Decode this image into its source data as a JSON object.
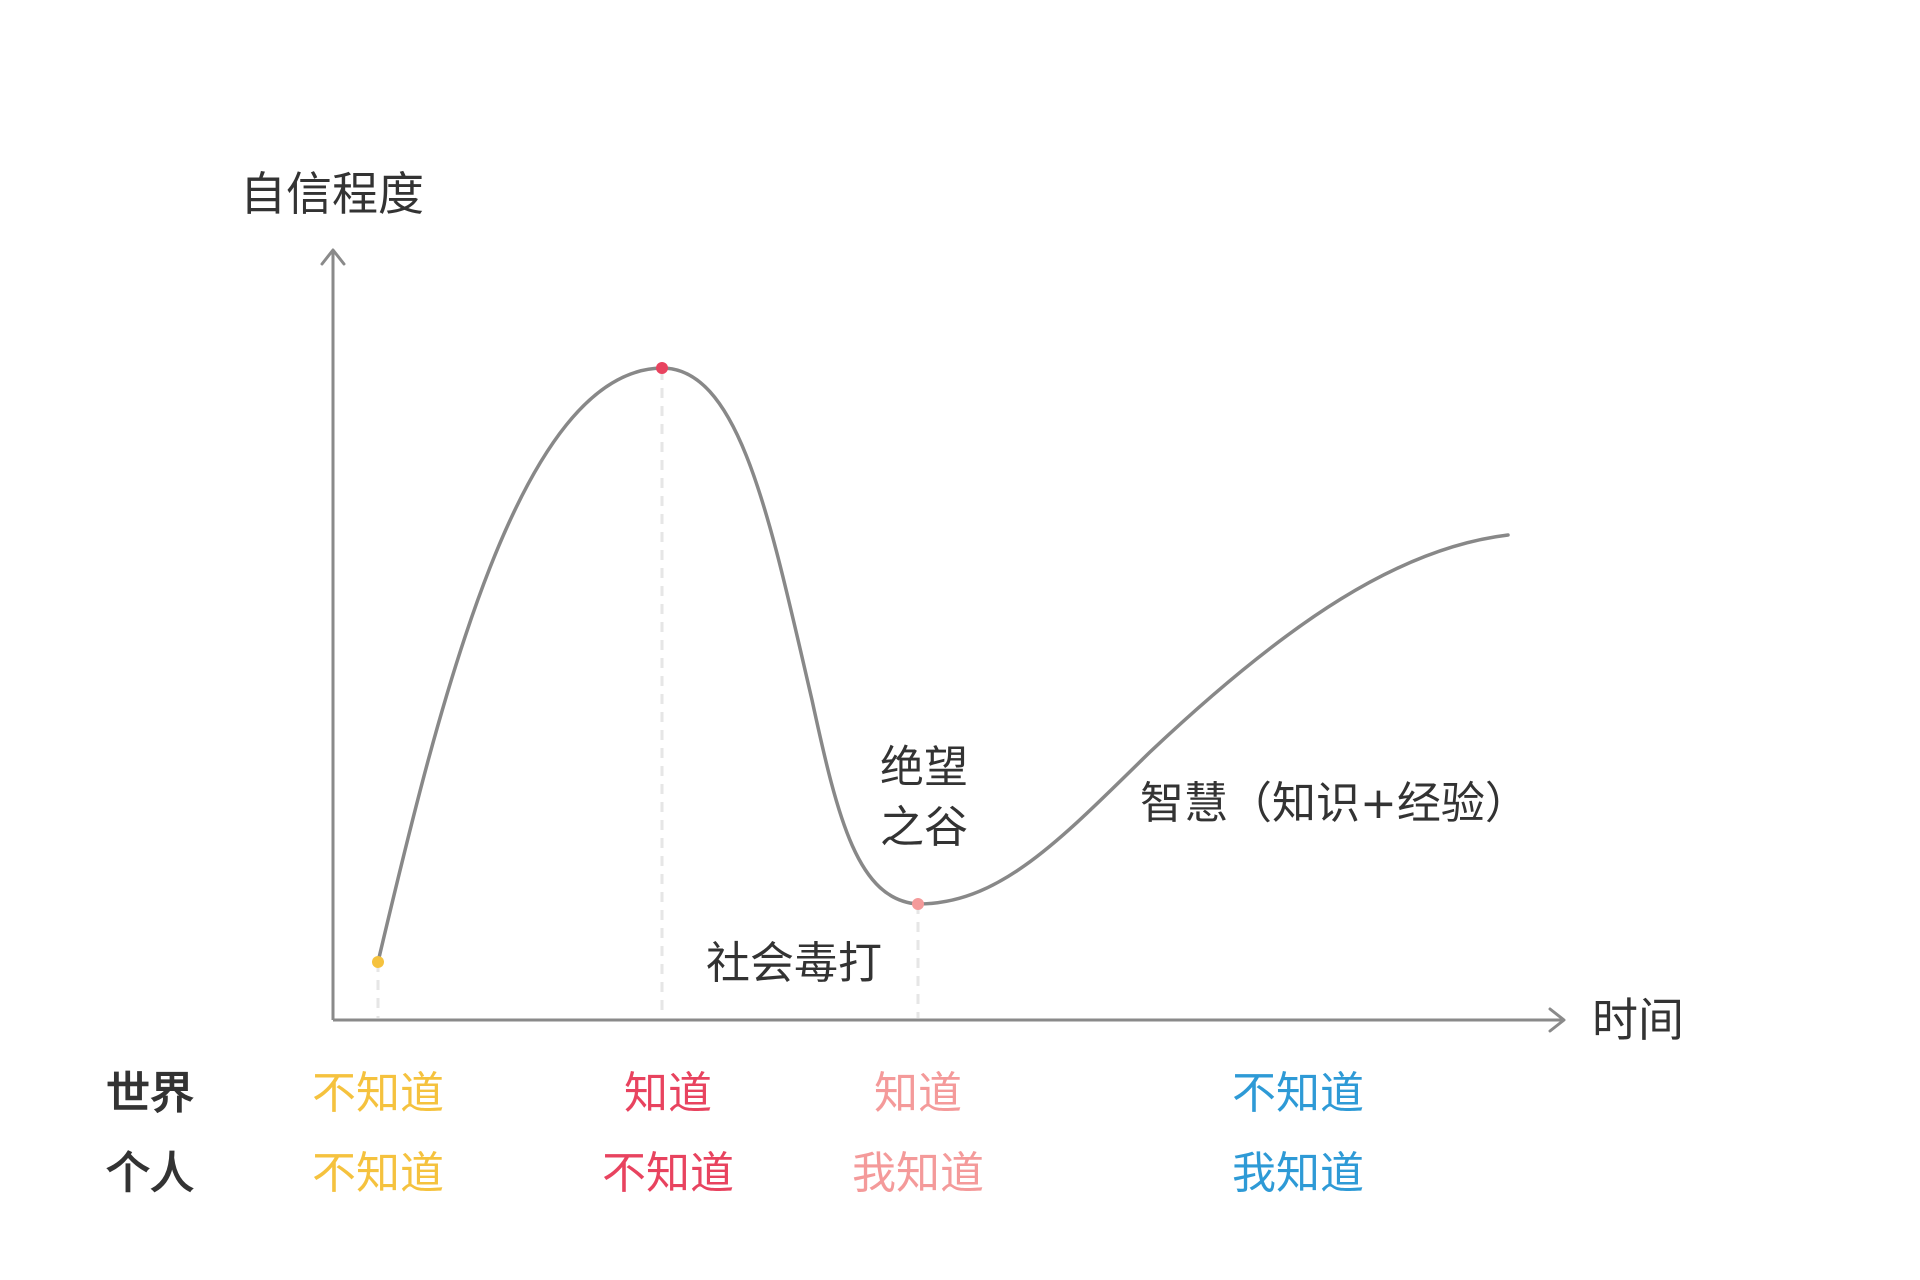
{
  "axes": {
    "y_label": "自信程度",
    "x_label": "时间"
  },
  "annotations": {
    "valley_line1": "绝望",
    "valley_line2": "之谷",
    "beating": "社会毒打",
    "wisdom": "智慧（知识+经验）"
  },
  "rows": {
    "world": "世界",
    "person": "个人"
  },
  "stages": [
    {
      "world": "不知道",
      "person": "不知道",
      "color": "#f5c23e"
    },
    {
      "world": "知道",
      "person": "不知道",
      "color": "#e8435f"
    },
    {
      "world": "知道",
      "person": "我知道",
      "color": "#f49a9a"
    },
    {
      "world": "不知道",
      "person": "我知道",
      "color": "#2e9ad6"
    }
  ],
  "colors": {
    "axis": "#8a8a8a",
    "curve": "#888888",
    "guide": "#e6e6e6",
    "text": "#333333"
  }
}
